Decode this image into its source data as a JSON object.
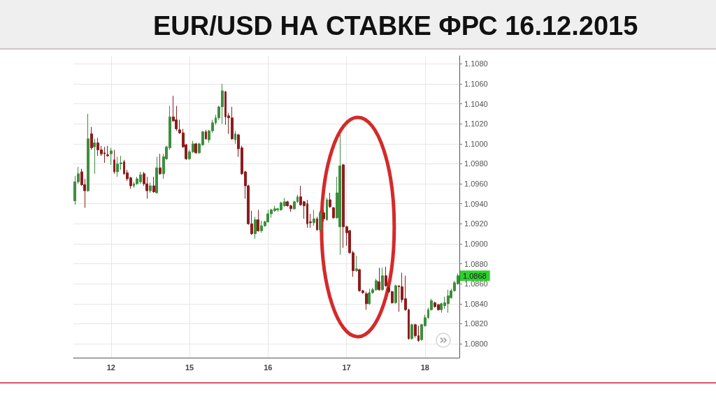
{
  "chart_data": {
    "type": "candlestick",
    "title": "EUR/USD НА СТАВКЕ ФРС 16.12.2015",
    "categories": [
      null,
      null,
      null,
      null,
      null,
      null,
      null,
      null,
      null,
      null,
      null,
      "12",
      null,
      null,
      null,
      null,
      null,
      null,
      null,
      null,
      null,
      null,
      null,
      null,
      null,
      null,
      null,
      null,
      null,
      null,
      null,
      null,
      null,
      null,
      null,
      "15",
      null,
      null,
      null,
      null,
      null,
      null,
      null,
      null,
      null,
      null,
      null,
      null,
      null,
      null,
      null,
      null,
      null,
      null,
      null,
      null,
      null,
      null,
      null,
      "16",
      null,
      null,
      null,
      null,
      null,
      null,
      null,
      null,
      null,
      null,
      null,
      null,
      null,
      null,
      null,
      null,
      null,
      null,
      null,
      null,
      null,
      null,
      null,
      "17",
      null,
      null,
      null,
      null,
      null,
      null,
      null,
      null,
      null,
      null,
      null,
      null,
      null,
      null,
      null,
      null,
      null,
      null,
      null,
      null,
      null,
      null,
      null,
      "18",
      null,
      null,
      null,
      null,
      null,
      null,
      null,
      null,
      null,
      null
    ],
    "ohlc": [
      [
        1.0943,
        1.0968,
        1.0939,
        1.0962
      ],
      [
        1.0962,
        1.0977,
        1.096,
        1.097
      ],
      [
        1.0972,
        1.0975,
        1.0958,
        1.0959
      ],
      [
        1.0959,
        1.0965,
        1.0936,
        1.0953
      ],
      [
        1.0953,
        1.103,
        1.0952,
        1.1005
      ],
      [
        1.101,
        1.1017,
        1.0994,
        1.0996
      ],
      [
        1.0997,
        1.1005,
        1.097,
        1.1001
      ],
      [
        1.1001,
        1.1006,
        1.0988,
        1.0994
      ],
      [
        1.0994,
        1.0998,
        1.0988,
        1.099
      ],
      [
        1.0991,
        1.0997,
        1.0981,
        1.099
      ],
      [
        1.0989,
        1.0998,
        1.0987,
        1.0988
      ],
      [
        1.099,
        1.0996,
        1.0979,
        1.0993
      ],
      [
        1.0984,
        1.0994,
        1.097,
        1.0972
      ],
      [
        1.0972,
        1.0987,
        1.0967,
        1.098
      ],
      [
        1.098,
        1.0988,
        1.0974,
        1.0981
      ],
      [
        1.0982,
        1.0984,
        1.0969,
        1.097
      ],
      [
        1.0971,
        1.0974,
        1.0963,
        1.0965
      ],
      [
        1.0966,
        1.0967,
        1.0955,
        1.0958
      ],
      [
        1.0958,
        1.0962,
        1.0956,
        1.096
      ],
      [
        1.096,
        1.0967,
        1.0959,
        1.0965
      ],
      [
        1.0962,
        1.0972,
        1.096,
        1.0969
      ],
      [
        1.097,
        1.0972,
        1.0958,
        1.096
      ],
      [
        1.096,
        1.0967,
        1.0945,
        1.0953
      ],
      [
        1.0953,
        1.0961,
        1.0951,
        1.0958
      ],
      [
        1.0958,
        1.0967,
        1.0951,
        1.0952
      ],
      [
        1.0951,
        1.0987,
        1.095,
        1.0976
      ],
      [
        1.0976,
        1.099,
        1.0969,
        1.097
      ],
      [
        1.097,
        1.099,
        1.0965,
        1.0987
      ],
      [
        1.0985,
        1.0998,
        1.0984,
        1.0997
      ],
      [
        1.0996,
        1.1038,
        1.0994,
        1.1027
      ],
      [
        1.1027,
        1.1048,
        1.1022,
        1.1023
      ],
      [
        1.1024,
        1.1038,
        1.1013,
        1.1015
      ],
      [
        1.1014,
        1.1024,
        1.101,
        1.1011
      ],
      [
        1.1011,
        1.1015,
        1.0996,
        1.0997
      ],
      [
        1.0999,
        1.1,
        1.0984,
        1.0985
      ],
      [
        1.0985,
        1.0994,
        1.0984,
        1.0992
      ],
      [
        1.0992,
        1.1003,
        1.0991,
        1.1
      ],
      [
        1.1,
        1.1001,
        1.099,
        1.0991
      ],
      [
        1.0991,
        1.1001,
        1.099,
        1.1
      ],
      [
        1.0999,
        1.1013,
        1.0998,
        1.1012
      ],
      [
        1.1012,
        1.1014,
        1.1004,
        1.1005
      ],
      [
        1.1004,
        1.1014,
        1.1001,
        1.1013
      ],
      [
        1.1013,
        1.1024,
        1.1011,
        1.1021
      ],
      [
        1.1021,
        1.1029,
        1.1019,
        1.1026
      ],
      [
        1.1026,
        1.1038,
        1.1024,
        1.1037
      ],
      [
        1.1037,
        1.106,
        1.102,
        1.1053
      ],
      [
        1.1052,
        1.1053,
        1.1019,
        1.1027
      ],
      [
        1.1028,
        1.1031,
        1.101,
        1.1026
      ],
      [
        1.1026,
        1.1037,
        1.1004,
        1.1005
      ],
      [
        1.1004,
        1.1013,
        1.1,
        1.101
      ],
      [
        1.1009,
        1.101,
        1.0987,
        1.0995
      ],
      [
        1.0996,
        1.0998,
        1.0969,
        1.097
      ],
      [
        1.0972,
        1.0973,
        1.0945,
        1.0958
      ],
      [
        1.0958,
        1.0959,
        1.0919,
        1.092
      ],
      [
        1.092,
        1.0933,
        1.0909,
        1.091
      ],
      [
        1.091,
        1.0927,
        1.0905,
        1.0924
      ],
      [
        1.0924,
        1.0934,
        1.0912,
        1.0913
      ],
      [
        1.0913,
        1.0923,
        1.0911,
        1.0918
      ],
      [
        1.0918,
        1.0923,
        1.0917,
        1.0922
      ],
      [
        1.0922,
        1.0934,
        1.0921,
        1.093
      ],
      [
        1.093,
        1.0935,
        1.0926,
        1.0934
      ],
      [
        1.0933,
        1.0938,
        1.0932,
        1.0935
      ],
      [
        1.0934,
        1.0936,
        1.0932,
        1.0935
      ],
      [
        1.0934,
        1.0942,
        1.0933,
        1.0941
      ],
      [
        1.0938,
        1.0946,
        1.0937,
        1.0942
      ],
      [
        1.0942,
        1.0943,
        1.0937,
        1.0938
      ],
      [
        1.0938,
        1.0939,
        1.0932,
        1.0935
      ],
      [
        1.0935,
        1.0943,
        1.0934,
        1.0942
      ],
      [
        1.0942,
        1.0949,
        1.0941,
        1.0947
      ],
      [
        1.0947,
        1.0958,
        1.0938,
        1.0939
      ],
      [
        1.0942,
        1.0943,
        1.0925,
        1.0938
      ],
      [
        1.094,
        1.0944,
        1.0916,
        1.092
      ],
      [
        1.0922,
        1.093,
        1.0916,
        1.0921
      ],
      [
        1.0921,
        1.0934,
        1.0918,
        1.0925
      ],
      [
        1.0925,
        1.0927,
        1.0913,
        1.0914
      ],
      [
        1.0914,
        1.0933,
        1.0912,
        1.0931
      ],
      [
        1.0931,
        1.0934,
        1.0922,
        1.0925
      ],
      [
        1.0924,
        1.0946,
        1.0923,
        1.0944
      ],
      [
        1.0944,
        1.0951,
        1.0936,
        1.0937
      ],
      [
        1.0936,
        1.0937,
        1.0925,
        1.0926
      ],
      [
        1.0926,
        1.0967,
        1.0925,
        1.0951
      ],
      [
        1.0917,
        1.1009,
        1.0889,
        1.0978
      ],
      [
        1.0979,
        1.098,
        1.0896,
        1.0917
      ],
      [
        1.0917,
        1.0918,
        1.0898,
        1.0911
      ],
      [
        1.0913,
        1.0914,
        1.089,
        1.0891
      ],
      [
        1.0891,
        1.0893,
        1.0867,
        1.0873
      ],
      [
        1.0873,
        1.0888,
        1.0872,
        1.0875
      ],
      [
        1.0874,
        1.0875,
        1.0852,
        1.0853
      ],
      [
        1.0853,
        1.0854,
        1.085,
        1.0851
      ],
      [
        1.085,
        1.0852,
        1.0834,
        1.084
      ],
      [
        1.084,
        1.0855,
        1.0839,
        1.0851
      ],
      [
        1.0851,
        1.0856,
        1.085,
        1.0854
      ],
      [
        1.0854,
        1.0865,
        1.0853,
        1.0863
      ],
      [
        1.0862,
        1.0876,
        1.0853,
        1.0854
      ],
      [
        1.0854,
        1.0876,
        1.0853,
        1.0868
      ],
      [
        1.0868,
        1.0877,
        1.0857,
        1.0858
      ],
      [
        1.0856,
        1.0858,
        1.0851,
        1.0852
      ],
      [
        1.0852,
        1.0853,
        1.084,
        1.0841
      ],
      [
        1.0841,
        1.0859,
        1.084,
        1.0858
      ],
      [
        1.0858,
        1.0858,
        1.0832,
        1.0857
      ],
      [
        1.0857,
        1.0871,
        1.0841,
        1.0844
      ],
      [
        1.0845,
        1.0868,
        1.0833,
        1.0834
      ],
      [
        1.0834,
        1.0835,
        1.0804,
        1.0805
      ],
      [
        1.0805,
        1.082,
        1.0804,
        1.0819
      ],
      [
        1.0819,
        1.082,
        1.0806,
        1.0808
      ],
      [
        1.0808,
        1.0818,
        1.0802,
        1.0803
      ],
      [
        1.0804,
        1.082,
        1.0803,
        1.0819
      ],
      [
        1.0818,
        1.0829,
        1.0817,
        1.0826
      ],
      [
        1.0826,
        1.0836,
        1.0825,
        1.0834
      ],
      [
        1.0834,
        1.0845,
        1.0833,
        1.0843
      ],
      [
        1.0841,
        1.0842,
        1.0836,
        1.0837
      ],
      [
        1.0839,
        1.084,
        1.0833,
        1.0834
      ],
      [
        1.0834,
        1.0841,
        1.0831,
        1.084
      ],
      [
        1.0838,
        1.0847,
        1.0835,
        1.0841
      ],
      [
        1.084,
        1.0854,
        1.0831,
        1.0848
      ],
      [
        1.0846,
        1.0855,
        1.0845,
        1.0853
      ],
      [
        1.0853,
        1.0863,
        1.0852,
        1.0861
      ],
      [
        1.086,
        1.087,
        1.0859,
        1.0868
      ]
    ],
    "colors": [
      "#3e8e3e",
      "#3e8e3e",
      "#8b1e1e",
      "#8b1e1e",
      "#3e8e3e",
      "#8b1e1e",
      "#3e8e3e",
      "#8b1e1e",
      "#8b1e1e",
      "#8b1e1e",
      "#8b1e1e",
      "#3e8e3e",
      "#8b1e1e",
      "#3e8e3e",
      "#3e8e3e",
      "#8b1e1e",
      "#8b1e1e",
      "#8b1e1e",
      "#3e8e3e",
      "#3e8e3e",
      "#3e8e3e",
      "#8b1e1e",
      "#8b1e1e",
      "#3e8e3e",
      "#8b1e1e",
      "#3e8e3e",
      "#8b1e1e",
      "#3e8e3e",
      "#3e8e3e",
      "#3e8e3e",
      "#8b1e1e",
      "#8b1e1e",
      "#8b1e1e",
      "#8b1e1e",
      "#8b1e1e",
      "#3e8e3e",
      "#3e8e3e",
      "#8b1e1e",
      "#3e8e3e",
      "#3e8e3e",
      "#8b1e1e",
      "#3e8e3e",
      "#3e8e3e",
      "#3e8e3e",
      "#3e8e3e",
      "#3e8e3e",
      "#8b1e1e",
      "#8b1e1e",
      "#8b1e1e",
      "#3e8e3e",
      "#8b1e1e",
      "#8b1e1e",
      "#8b1e1e",
      "#8b1e1e",
      "#8b1e1e",
      "#3e8e3e",
      "#8b1e1e",
      "#3e8e3e",
      "#3e8e3e",
      "#3e8e3e",
      "#3e8e3e",
      "#3e8e3e",
      "#3e8e3e",
      "#3e8e3e",
      "#3e8e3e",
      "#8b1e1e",
      "#8b1e1e",
      "#3e8e3e",
      "#3e8e3e",
      "#8b1e1e",
      "#8b1e1e",
      "#8b1e1e",
      "#8b1e1e",
      "#3e8e3e",
      "#8b1e1e",
      "#3e8e3e",
      "#8b1e1e",
      "#3e8e3e",
      "#8b1e1e",
      "#8b1e1e",
      "#3e8e3e",
      "#3e8e3e",
      "#8b1e1e",
      "#8b1e1e",
      "#8b1e1e",
      "#8b1e1e",
      "#3e8e3e",
      "#8b1e1e",
      "#8b1e1e",
      "#8b1e1e",
      "#3e8e3e",
      "#3e8e3e",
      "#3e8e3e",
      "#8b1e1e",
      "#3e8e3e",
      "#8b1e1e",
      "#8b1e1e",
      "#8b1e1e",
      "#3e8e3e",
      "#8b1e1e",
      "#8b1e1e",
      "#8b1e1e",
      "#8b1e1e",
      "#3e8e3e",
      "#8b1e1e",
      "#8b1e1e",
      "#3e8e3e",
      "#3e8e3e",
      "#3e8e3e",
      "#3e8e3e",
      "#8b1e1e",
      "#8b1e1e",
      "#3e8e3e",
      "#3e8e3e",
      "#3e8e3e",
      "#3e8e3e",
      "#3e8e3e",
      "#3e8e3e"
    ],
    "ylim": [
      1.0786,
      1.1088
    ],
    "yticks": [
      {
        "value": 1.08,
        "label": "1.0800"
      },
      {
        "value": 1.082,
        "label": "1.0820"
      },
      {
        "value": 1.084,
        "label": "1.0840"
      },
      {
        "value": 1.086,
        "label": "1.0860"
      },
      {
        "value": 1.088,
        "label": "1.0880"
      },
      {
        "value": 1.09,
        "label": "1.0900"
      },
      {
        "value": 1.092,
        "label": "1.0920"
      },
      {
        "value": 1.094,
        "label": "1.0940"
      },
      {
        "value": 1.096,
        "label": "1.0960"
      },
      {
        "value": 1.098,
        "label": "1.0980"
      },
      {
        "value": 1.1,
        "label": "1.1000"
      },
      {
        "value": 1.102,
        "label": "1.1020"
      },
      {
        "value": 1.104,
        "label": "1.1040"
      },
      {
        "value": 1.106,
        "label": "1.1060"
      },
      {
        "value": 1.108,
        "label": "1.1080"
      }
    ],
    "annotations": [
      {
        "text": "1.0868",
        "y": 1.0868
      }
    ],
    "grid": true
  }
}
